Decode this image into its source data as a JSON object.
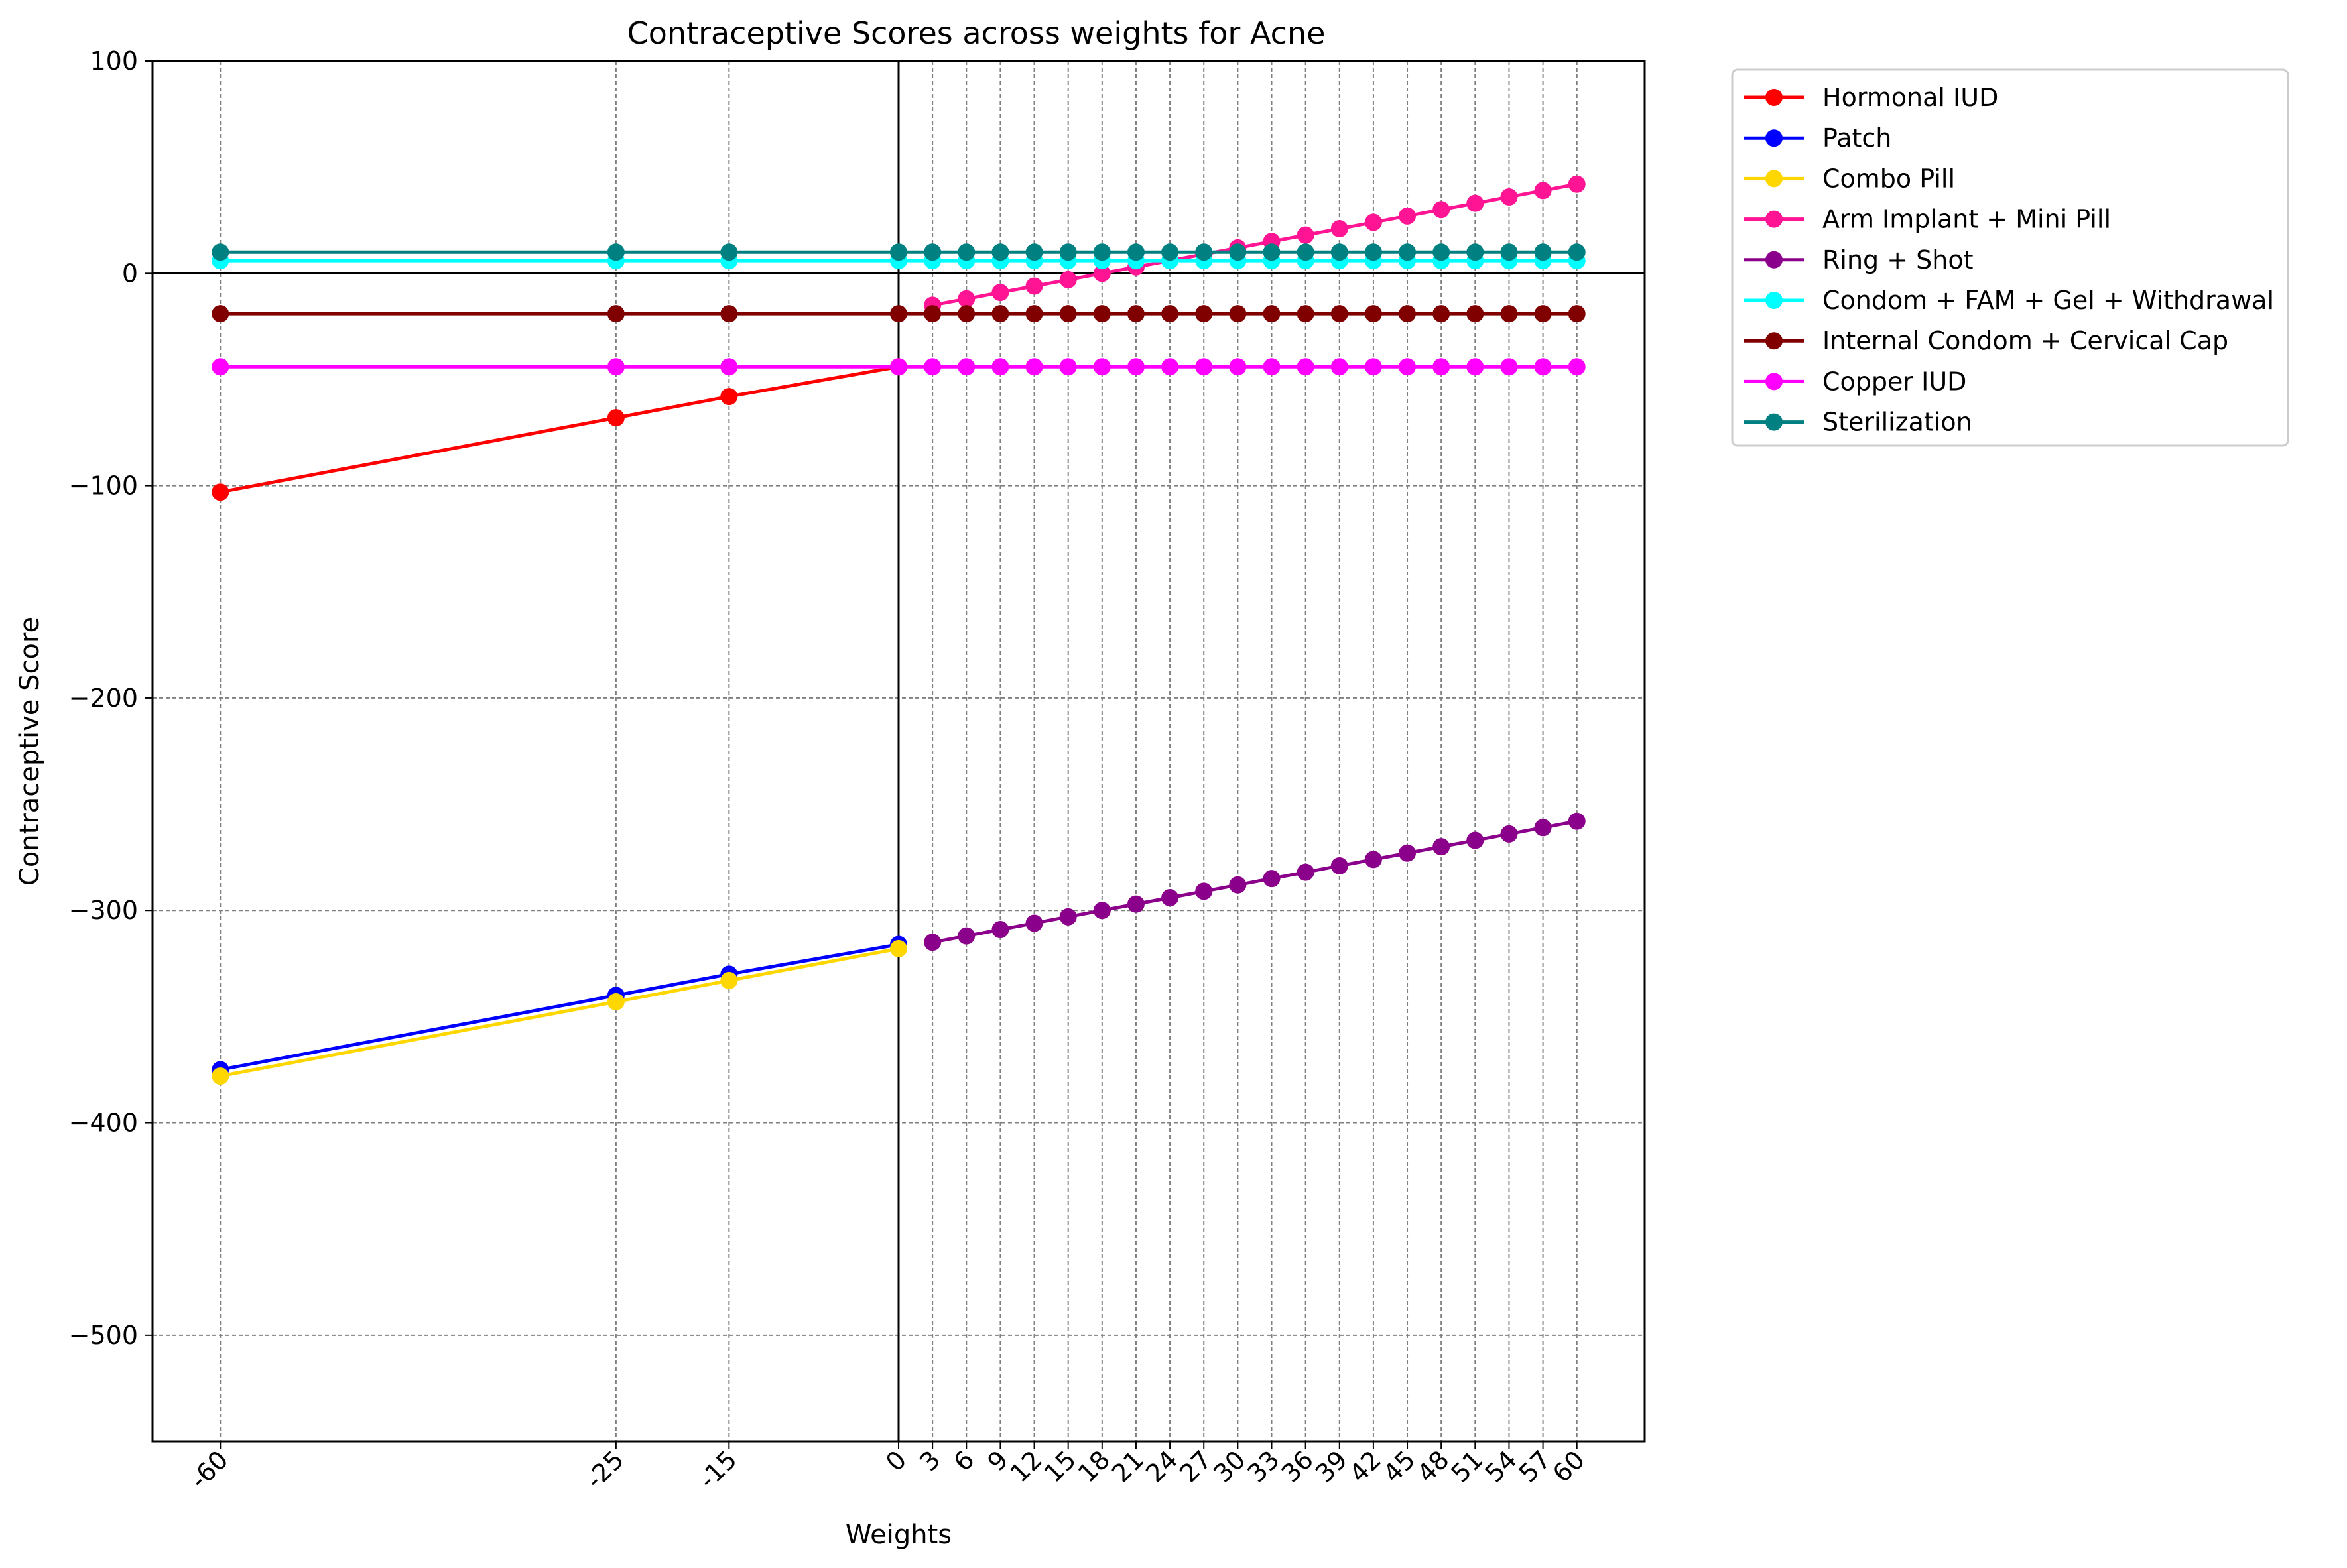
{
  "chart_data": {
    "type": "line",
    "title": "Contraceptive Scores across weights for Acne",
    "xlabel": "Weights",
    "ylabel": "Contraceptive Score",
    "x_ticks": [
      -60,
      -25,
      -15,
      0,
      3,
      6,
      9,
      12,
      15,
      18,
      21,
      24,
      27,
      30,
      33,
      36,
      39,
      42,
      45,
      48,
      51,
      54,
      57,
      60
    ],
    "x_tick_labels": [
      "-60",
      "-25",
      "-15",
      "0",
      "3",
      "6",
      "9",
      "12",
      "15",
      "18",
      "21",
      "24",
      "27",
      "30",
      "33",
      "36",
      "39",
      "42",
      "45",
      "48",
      "51",
      "54",
      "57",
      "60"
    ],
    "y_ticks": [
      100,
      0,
      -100,
      -200,
      -300,
      -400,
      -500
    ],
    "y_tick_labels": [
      "100",
      "0",
      "−100",
      "−200",
      "−300",
      "−400",
      "−500"
    ],
    "xlim": [
      -66,
      66
    ],
    "ylim": [
      -550,
      100
    ],
    "grid": true,
    "reference_lines": {
      "x": 0,
      "y": 0
    },
    "legend_placement": "outside upper right",
    "series": [
      {
        "name": "Hormonal IUD",
        "color": "#ff0000",
        "x": [
          -60,
          -25,
          -15,
          0
        ],
        "y": [
          -103,
          -68,
          -58,
          -44
        ]
      },
      {
        "name": "Patch",
        "color": "#0000ff",
        "x": [
          -60,
          -25,
          -15,
          0
        ],
        "y": [
          -375,
          -340,
          -330,
          -316
        ]
      },
      {
        "name": "Combo Pill",
        "color": "#ffd700",
        "x": [
          -60,
          -25,
          -15,
          0
        ],
        "y": [
          -378,
          -343,
          -333,
          -318
        ]
      },
      {
        "name": "Arm Implant + Mini Pill",
        "color": "#ff1493",
        "x": [
          3,
          6,
          9,
          12,
          15,
          18,
          21,
          24,
          27,
          30,
          33,
          36,
          39,
          42,
          45,
          48,
          51,
          54,
          57,
          60
        ],
        "y": [
          -15,
          -12,
          -9,
          -6,
          -3,
          0,
          3,
          6,
          9,
          12,
          15,
          18,
          21,
          24,
          27,
          30,
          33,
          36,
          39,
          42
        ]
      },
      {
        "name": "Ring + Shot",
        "color": "#8b008b",
        "x": [
          3,
          6,
          9,
          12,
          15,
          18,
          21,
          24,
          27,
          30,
          33,
          36,
          39,
          42,
          45,
          48,
          51,
          54,
          57,
          60
        ],
        "y": [
          -315,
          -312,
          -309,
          -306,
          -303,
          -300,
          -297,
          -294,
          -291,
          -288,
          -285,
          -282,
          -279,
          -276,
          -273,
          -270,
          -267,
          -264,
          -261,
          -258
        ]
      },
      {
        "name": "Condom + FAM + Gel + Withdrawal",
        "color": "#00ffff",
        "x": [
          -60,
          -25,
          -15,
          0,
          3,
          6,
          9,
          12,
          15,
          18,
          21,
          24,
          27,
          30,
          33,
          36,
          39,
          42,
          45,
          48,
          51,
          54,
          57,
          60
        ],
        "y": [
          6,
          6,
          6,
          6,
          6,
          6,
          6,
          6,
          6,
          6,
          6,
          6,
          6,
          6,
          6,
          6,
          6,
          6,
          6,
          6,
          6,
          6,
          6,
          6
        ]
      },
      {
        "name": "Internal Condom + Cervical Cap",
        "color": "#800000",
        "x": [
          -60,
          -25,
          -15,
          0,
          3,
          6,
          9,
          12,
          15,
          18,
          21,
          24,
          27,
          30,
          33,
          36,
          39,
          42,
          45,
          48,
          51,
          54,
          57,
          60
        ],
        "y": [
          -19,
          -19,
          -19,
          -19,
          -19,
          -19,
          -19,
          -19,
          -19,
          -19,
          -19,
          -19,
          -19,
          -19,
          -19,
          -19,
          -19,
          -19,
          -19,
          -19,
          -19,
          -19,
          -19,
          -19
        ]
      },
      {
        "name": "Copper IUD",
        "color": "#ff00ff",
        "x": [
          -60,
          -25,
          -15,
          0,
          3,
          6,
          9,
          12,
          15,
          18,
          21,
          24,
          27,
          30,
          33,
          36,
          39,
          42,
          45,
          48,
          51,
          54,
          57,
          60
        ],
        "y": [
          -44,
          -44,
          -44,
          -44,
          -44,
          -44,
          -44,
          -44,
          -44,
          -44,
          -44,
          -44,
          -44,
          -44,
          -44,
          -44,
          -44,
          -44,
          -44,
          -44,
          -44,
          -44,
          -44,
          -44
        ]
      },
      {
        "name": "Sterilization",
        "color": "#008080",
        "x": [
          -60,
          -25,
          -15,
          0,
          3,
          6,
          9,
          12,
          15,
          18,
          21,
          24,
          27,
          30,
          33,
          36,
          39,
          42,
          45,
          48,
          51,
          54,
          57,
          60
        ],
        "y": [
          10,
          10,
          10,
          10,
          10,
          10,
          10,
          10,
          10,
          10,
          10,
          10,
          10,
          10,
          10,
          10,
          10,
          10,
          10,
          10,
          10,
          10,
          10,
          10
        ]
      }
    ]
  }
}
